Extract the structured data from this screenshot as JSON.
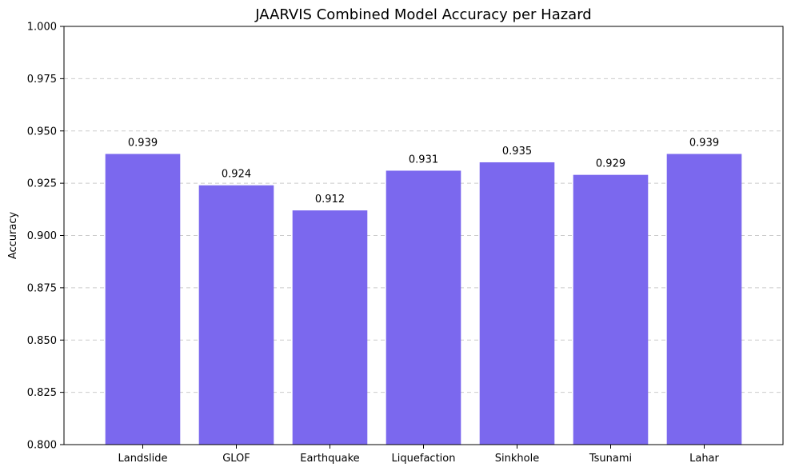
{
  "chart_data": {
    "type": "bar",
    "title": "JAARVIS Combined Model Accuracy per Hazard",
    "xlabel": "",
    "ylabel": "Accuracy",
    "categories": [
      "Landslide",
      "GLOF",
      "Earthquake",
      "Liquefaction",
      "Sinkhole",
      "Tsunami",
      "Lahar"
    ],
    "values": [
      0.939,
      0.924,
      0.912,
      0.931,
      0.935,
      0.929,
      0.939
    ],
    "value_labels": [
      "0.939",
      "0.924",
      "0.912",
      "0.931",
      "0.935",
      "0.929",
      "0.939"
    ],
    "ylim": [
      0.8,
      1.0
    ],
    "yticks": [
      0.8,
      0.825,
      0.85,
      0.875,
      0.9,
      0.925,
      0.95,
      0.975,
      1.0
    ],
    "ytick_labels": [
      "0.800",
      "0.825",
      "0.850",
      "0.875",
      "0.900",
      "0.925",
      "0.950",
      "0.975",
      "1.000"
    ],
    "grid": {
      "axis": "y",
      "style": "dashed"
    },
    "bar_color": "#7b68ee",
    "legend": "none"
  }
}
